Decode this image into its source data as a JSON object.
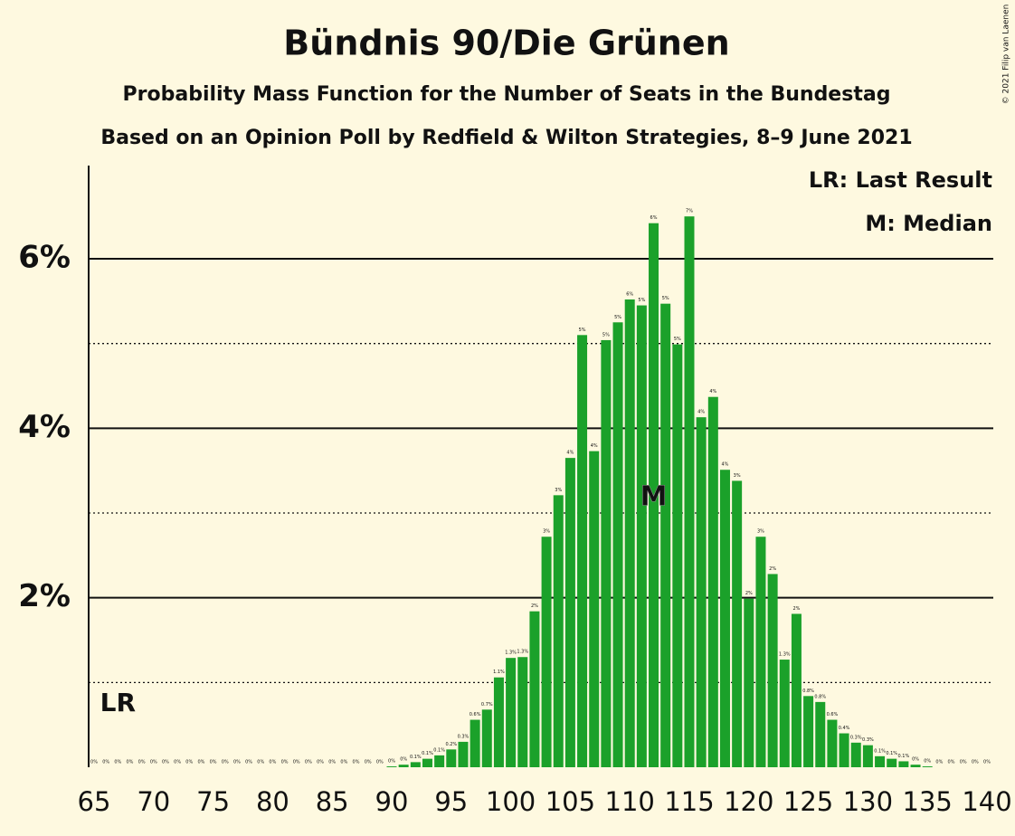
{
  "chart_data": {
    "type": "bar",
    "title": "Bündnis 90/Die Grünen",
    "subtitle": "Probability Mass Function for the Number of Seats in the Bundestag",
    "source_note": "Based on an Opinion Poll by Redfield & Wilton Strategies, 8–9 June 2021",
    "copyright": "© 2021 Filip van Laenen",
    "color": "#1ba12a",
    "x": [
      65,
      66,
      67,
      68,
      69,
      70,
      71,
      72,
      73,
      74,
      75,
      76,
      77,
      78,
      79,
      80,
      81,
      82,
      83,
      84,
      85,
      86,
      87,
      88,
      89,
      90,
      91,
      92,
      93,
      94,
      95,
      96,
      97,
      98,
      99,
      100,
      101,
      102,
      103,
      104,
      105,
      106,
      107,
      108,
      109,
      110,
      111,
      112,
      113,
      114,
      115,
      116,
      117,
      118,
      119,
      120,
      121,
      122,
      123,
      124,
      125,
      126,
      127,
      128,
      129,
      130,
      131,
      132,
      133,
      134,
      135,
      136,
      137,
      138,
      139,
      140
    ],
    "values": [
      0,
      0,
      0,
      0,
      0,
      0,
      0,
      0,
      0,
      0,
      0,
      0,
      0,
      0,
      0,
      0,
      0,
      0,
      0,
      0,
      0,
      0,
      0,
      0,
      0,
      0.01,
      0.03,
      0.06,
      0.1,
      0.14,
      0.21,
      0.3,
      0.56,
      0.68,
      1.06,
      1.29,
      1.3,
      1.84,
      2.72,
      3.21,
      3.65,
      5.1,
      3.73,
      5.04,
      5.25,
      5.52,
      5.45,
      6.42,
      5.47,
      4.99,
      6.5,
      4.13,
      4.37,
      3.51,
      3.38,
      1.99,
      2.72,
      2.28,
      1.27,
      1.81,
      0.84,
      0.77,
      0.56,
      0.4,
      0.29,
      0.26,
      0.13,
      0.1,
      0.07,
      0.03,
      0.01,
      0,
      0,
      0,
      0,
      0
    ],
    "value_labels": [
      "0%",
      "0%",
      "0%",
      "0%",
      "0%",
      "0%",
      "0%",
      "0%",
      "0%",
      "0%",
      "0%",
      "0%",
      "0%",
      "0%",
      "0%",
      "0%",
      "0%",
      "0%",
      "0%",
      "0%",
      "0%",
      "0%",
      "0%",
      "0%",
      "0%",
      "0%",
      "0%",
      "0.1%",
      "0.1%",
      "0.1%",
      "0.2%",
      "0.3%",
      "0.6%",
      "0.7%",
      "1.1%",
      "1.3%",
      "1.3%",
      "2%",
      "3%",
      "3%",
      "4%",
      "5%",
      "4%",
      "5%",
      "5%",
      "6%",
      "5%",
      "6%",
      "5%",
      "5%",
      "7%",
      "4%",
      "4%",
      "4%",
      "3%",
      "2%",
      "3%",
      "2%",
      "1.3%",
      "2%",
      "0.8%",
      "0.8%",
      "0.6%",
      "0.4%",
      "0.3%",
      "0.3%",
      "0.1%",
      "0.1%",
      "0.1%",
      "0%",
      "0%",
      "0%",
      "0%",
      "0%",
      "0%",
      "0%"
    ],
    "xlim": [
      64.5,
      140.5
    ],
    "xticks": [
      65,
      70,
      75,
      80,
      85,
      90,
      95,
      100,
      105,
      110,
      115,
      120,
      125,
      130,
      135,
      140
    ],
    "ylim": [
      0,
      7.1
    ],
    "yticks": [
      {
        "value": 2,
        "label": "2%"
      },
      {
        "value": 4,
        "label": "4%"
      },
      {
        "value": 6,
        "label": "6%"
      }
    ],
    "minor_yticks": [
      1,
      3,
      5
    ],
    "last_result": {
      "label": "LR",
      "x": 67
    },
    "median": {
      "label": "M",
      "x": 112
    },
    "legend": [
      "LR: Last Result",
      "M: Median"
    ]
  }
}
